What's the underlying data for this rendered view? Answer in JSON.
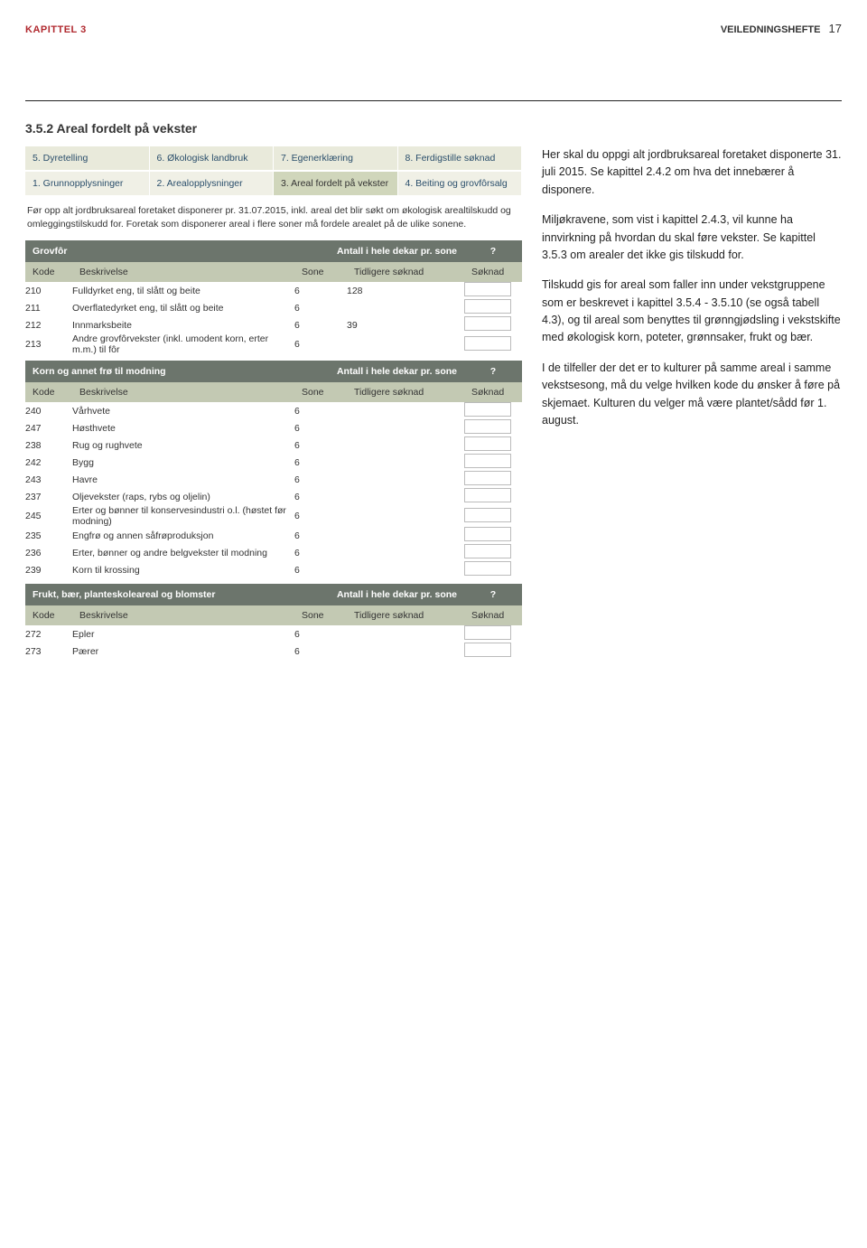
{
  "header": {
    "chapter": "KAPITTEL 3",
    "booklet": "VEILEDNINGSHEFTE",
    "page_number": "17"
  },
  "section": {
    "title": "3.5.2 Areal fordelt på vekster"
  },
  "side_text": {
    "p1": "Her skal du oppgi alt jordbruksareal foretaket disponerte 31. juli 2015. Se kapittel 2.4.2 om hva det innebærer å disponere.",
    "p2": "Miljøkravene, som vist i kapittel 2.4.3, vil kunne ha innvirkning på hvordan du skal føre vekster. Se kapittel 3.5.3 om arealer det ikke gis tilskudd for.",
    "p3": "Tilskudd gis for areal som faller inn under vekstgruppene som er beskrevet i kapittel  3.5.4 - 3.5.10 (se også tabell 4.3), og til areal som benyttes til grønngjødsling i vekstskifte med økologisk korn, poteter, grønnsaker, frukt og bær.",
    "p4": "I de tilfeller der det er to kulturer på samme areal i samme vekstsesong, må du velge hvilken kode du ønsker å føre på skjemaet. Kulturen du velger må være plantet/sådd før 1. august."
  },
  "tabs_top": [
    "5. Dyretelling",
    "6. Økologisk landbruk",
    "7. Egenerklæring",
    "8. Ferdigstille søknad"
  ],
  "tabs_second": [
    "1. Grunnopplysninger",
    "2. Arealopplysninger",
    "3. Areal fordelt på vekster",
    "4. Beiting og grovfôrsalg"
  ],
  "active_tab_index": 2,
  "instructions": "Før opp alt jordbruksareal foretaket disponerer pr. 31.07.2015, inkl. areal det blir søkt om økologisk arealtilskudd og omleggingstilskudd for. Foretak som disponerer areal i flere soner må fordele arealet på de ulike sonene.",
  "columns": {
    "kode": "Kode",
    "besk": "Beskrivelse",
    "sone": "Sone",
    "tidl": "Tidligere søknad",
    "sok": "Søknad"
  },
  "group_header_right": "Antall i hele dekar pr. sone",
  "question_mark": "?",
  "groups": [
    {
      "title": "Grovfôr",
      "rows": [
        {
          "kode": "210",
          "besk": "Fulldyrket eng, til slått og beite",
          "sone": "6",
          "tidl": "128"
        },
        {
          "kode": "211",
          "besk": "Overflatedyrket eng, til slått og beite",
          "sone": "6",
          "tidl": ""
        },
        {
          "kode": "212",
          "besk": "Innmarksbeite",
          "sone": "6",
          "tidl": "39"
        },
        {
          "kode": "213",
          "besk": "Andre grovfôrvekster (inkl. umodent korn, erter m.m.) til fôr",
          "sone": "6",
          "tidl": ""
        }
      ]
    },
    {
      "title": "Korn og annet frø til modning",
      "rows": [
        {
          "kode": "240",
          "besk": "Vårhvete",
          "sone": "6",
          "tidl": ""
        },
        {
          "kode": "247",
          "besk": "Høsthvete",
          "sone": "6",
          "tidl": ""
        },
        {
          "kode": "238",
          "besk": "Rug og rughvete",
          "sone": "6",
          "tidl": ""
        },
        {
          "kode": "242",
          "besk": "Bygg",
          "sone": "6",
          "tidl": ""
        },
        {
          "kode": "243",
          "besk": "Havre",
          "sone": "6",
          "tidl": ""
        },
        {
          "kode": "237",
          "besk": "Oljevekster (raps, rybs og oljelin)",
          "sone": "6",
          "tidl": ""
        },
        {
          "kode": "245",
          "besk": "Erter og bønner til konservesindustri o.l. (høstet før modning)",
          "sone": "6",
          "tidl": ""
        },
        {
          "kode": "235",
          "besk": "Engfrø og annen såfrøproduksjon",
          "sone": "6",
          "tidl": ""
        },
        {
          "kode": "236",
          "besk": "Erter, bønner og andre belgvekster til modning",
          "sone": "6",
          "tidl": ""
        },
        {
          "kode": "239",
          "besk": "Korn til krossing",
          "sone": "6",
          "tidl": ""
        }
      ]
    },
    {
      "title": "Frukt, bær, planteskoleareal og blomster",
      "rows": [
        {
          "kode": "272",
          "besk": "Epler",
          "sone": "6",
          "tidl": ""
        },
        {
          "kode": "273",
          "besk": "Pærer",
          "sone": "6",
          "tidl": ""
        }
      ]
    }
  ],
  "colors": {
    "accent_red": "#b0282e",
    "group_header_bg": "#6c756c",
    "col_head_bg": "#c3c9b3",
    "row_odd": "#e4e7d6",
    "row_even": "#d4d9c3",
    "tab_bg": "#e9eadb",
    "tab_active": "#d0d6bb"
  }
}
